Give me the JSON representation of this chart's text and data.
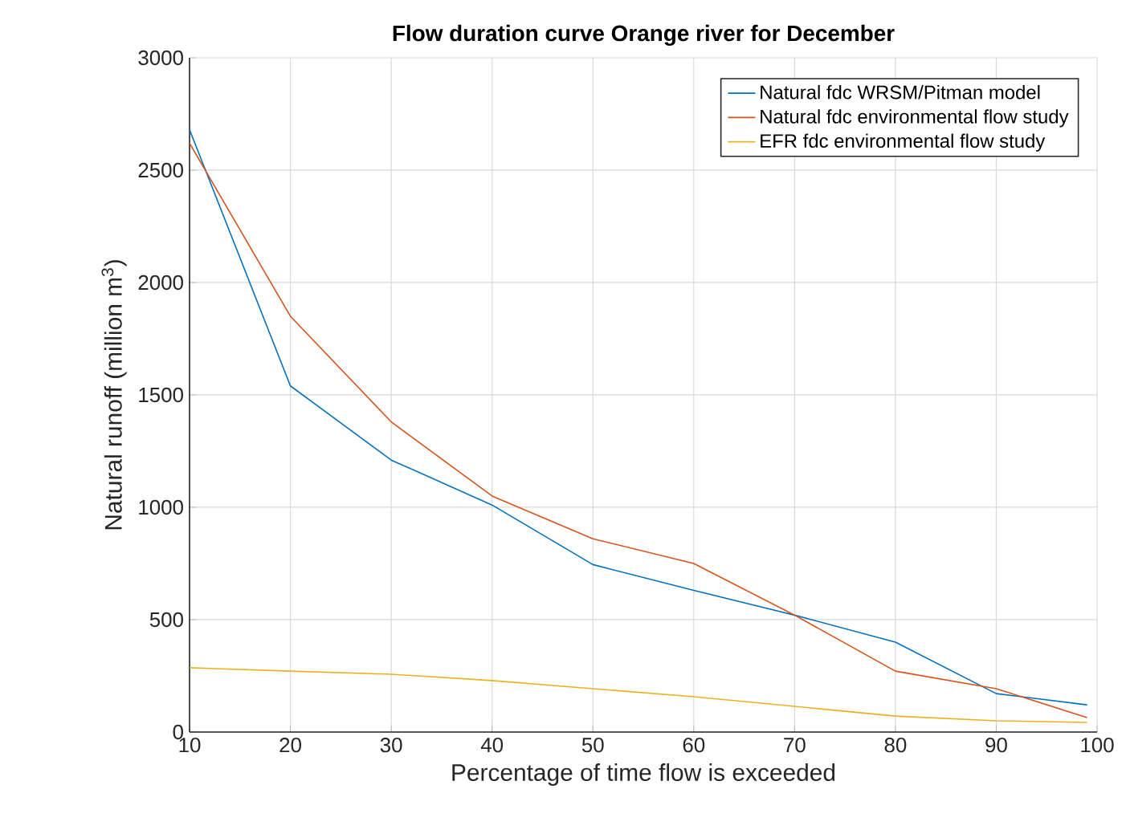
{
  "chart_data": {
    "type": "line",
    "title": "Flow duration curve Orange river for December",
    "xlabel": "Percentage of time flow is exceeded",
    "ylabel": "Natural runoff (million m$^{3}$)",
    "x": [
      10,
      20,
      30,
      40,
      50,
      60,
      70,
      80,
      90,
      99
    ],
    "series": [
      {
        "name": "Natural fdc WRSM/Pitman model",
        "color": "#0072bd",
        "values": [
          2680,
          1540,
          1210,
          1010,
          745,
          630,
          520,
          400,
          171,
          121
        ]
      },
      {
        "name": "Natural fdc environmental flow study",
        "color": "#d95319",
        "values": [
          2620,
          1850,
          1380,
          1050,
          860,
          750,
          520,
          271,
          193,
          64
        ]
      },
      {
        "name": "EFR fdc environmental flow study",
        "color": "#edb120",
        "values": [
          286,
          271,
          257,
          229,
          193,
          157,
          114,
          71,
          50,
          43
        ]
      }
    ],
    "xlim": [
      10,
      100
    ],
    "ylim": [
      0,
      3000
    ],
    "xticks": [
      10,
      20,
      30,
      40,
      50,
      60,
      70,
      80,
      90,
      100
    ],
    "yticks": [
      0,
      500,
      1000,
      1500,
      2000,
      2500,
      3000
    ],
    "grid": true,
    "legend": "top right",
    "marker": "none",
    "line_style": "solid"
  }
}
